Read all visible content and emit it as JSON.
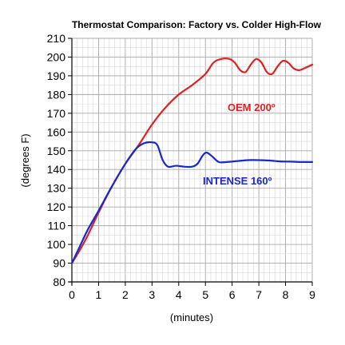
{
  "chart_data": {
    "type": "line",
    "title": "Thermostat Comparison: Factory vs. Colder High-Flow",
    "xlabel": "(minutes)",
    "ylabel": "(degrees F)",
    "xlim": [
      0,
      9
    ],
    "ylim": [
      80,
      210
    ],
    "x_ticks": [
      "0",
      "1",
      "2",
      "3",
      "4",
      "5",
      "6",
      "7",
      "8",
      "9"
    ],
    "y_ticks": [
      "80",
      "90",
      "100",
      "110",
      "120",
      "130",
      "140",
      "150",
      "160",
      "170",
      "180",
      "190",
      "200",
      "210"
    ],
    "x_minor_step": 0.2,
    "y_minor_step": 5,
    "grid": true,
    "annotations": {
      "oem": "OEM 200º",
      "intense": "INTENSE 160º"
    },
    "series": [
      {
        "key": "oem",
        "color": "#e02020",
        "points": [
          [
            0,
            90
          ],
          [
            0.3,
            97
          ],
          [
            0.6,
            105
          ],
          [
            1,
            117
          ],
          [
            1.5,
            131
          ],
          [
            2,
            143
          ],
          [
            2.5,
            153
          ],
          [
            3,
            164
          ],
          [
            3.5,
            173
          ],
          [
            4,
            180
          ],
          [
            4.5,
            185
          ],
          [
            5,
            191
          ],
          [
            5.3,
            197
          ],
          [
            5.6,
            199
          ],
          [
            5.9,
            199
          ],
          [
            6.1,
            197
          ],
          [
            6.3,
            193
          ],
          [
            6.5,
            192
          ],
          [
            6.7,
            196
          ],
          [
            6.9,
            199
          ],
          [
            7.1,
            197
          ],
          [
            7.3,
            192
          ],
          [
            7.5,
            191
          ],
          [
            7.7,
            195
          ],
          [
            7.9,
            198
          ],
          [
            8.1,
            197
          ],
          [
            8.3,
            194
          ],
          [
            8.5,
            193
          ],
          [
            8.7,
            194
          ],
          [
            9,
            196
          ]
        ]
      },
      {
        "key": "intense",
        "color": "#1a28c8",
        "points": [
          [
            0,
            90
          ],
          [
            0.3,
            99
          ],
          [
            0.6,
            108
          ],
          [
            1,
            118
          ],
          [
            1.5,
            131
          ],
          [
            2,
            143
          ],
          [
            2.4,
            151
          ],
          [
            2.7,
            154
          ],
          [
            3,
            154.5
          ],
          [
            3.2,
            153
          ],
          [
            3.4,
            145
          ],
          [
            3.6,
            141.5
          ],
          [
            3.9,
            142
          ],
          [
            4.2,
            141.5
          ],
          [
            4.5,
            141.5
          ],
          [
            4.7,
            143
          ],
          [
            4.9,
            147.5
          ],
          [
            5.05,
            149
          ],
          [
            5.25,
            147
          ],
          [
            5.5,
            144
          ],
          [
            5.8,
            144
          ],
          [
            6.2,
            144.5
          ],
          [
            6.6,
            145
          ],
          [
            7,
            145
          ],
          [
            7.4,
            144.8
          ],
          [
            7.8,
            144.3
          ],
          [
            8.2,
            144.2
          ],
          [
            8.6,
            144
          ],
          [
            9,
            144
          ]
        ]
      }
    ]
  }
}
